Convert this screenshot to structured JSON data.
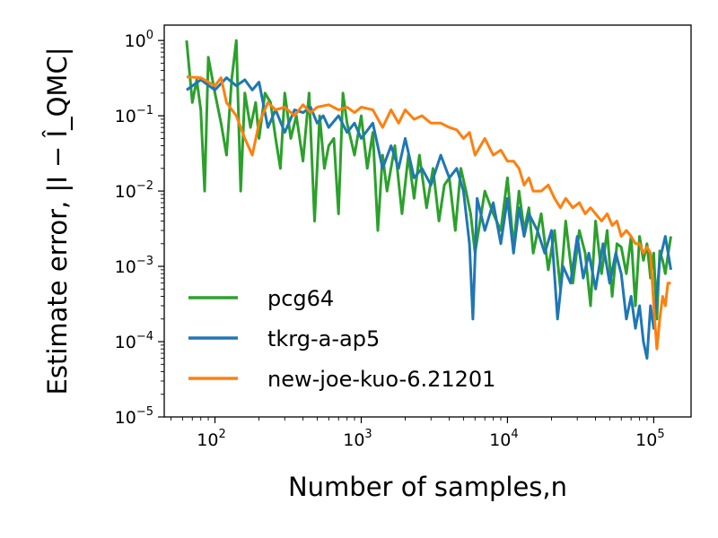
{
  "chart_data": {
    "type": "line",
    "title": "",
    "xlabel": "Number of samples,n",
    "ylabel": "Estimate error, |I − Î_QMC|",
    "xscale": "log",
    "yscale": "log",
    "xlim": [
      45,
      180000
    ],
    "ylim": [
      1e-05,
      1.6
    ],
    "x_ticks": [
      {
        "value": 100,
        "base": "10",
        "exp": "2"
      },
      {
        "value": 1000,
        "base": "10",
        "exp": "3"
      },
      {
        "value": 10000,
        "base": "10",
        "exp": "4"
      },
      {
        "value": 100000,
        "base": "10",
        "exp": "5"
      }
    ],
    "y_ticks": [
      {
        "value": 1,
        "base": "10",
        "exp": "0"
      },
      {
        "value": 0.1,
        "base": "10",
        "exp": "−1"
      },
      {
        "value": 0.01,
        "base": "10",
        "exp": "−2"
      },
      {
        "value": 0.001,
        "base": "10",
        "exp": "−3"
      },
      {
        "value": 0.0001,
        "base": "10",
        "exp": "−4"
      },
      {
        "value": 1e-05,
        "base": "10",
        "exp": "−5"
      }
    ],
    "legend_position": "lower-left",
    "series": [
      {
        "name": "pcg64",
        "color": "#2ca02c",
        "x": [
          64,
          70,
          75,
          80,
          85,
          90,
          100,
          110,
          120,
          130,
          140,
          150,
          160,
          175,
          190,
          200,
          220,
          240,
          260,
          280,
          300,
          330,
          360,
          400,
          440,
          480,
          520,
          560,
          600,
          650,
          700,
          750,
          800,
          900,
          1000,
          1100,
          1200,
          1300,
          1400,
          1500,
          1700,
          1900,
          2100,
          2300,
          2500,
          2800,
          3100,
          3400,
          3700,
          4000,
          4400,
          4800,
          5200,
          5600,
          6000,
          7000,
          8000,
          9000,
          10000,
          11000,
          12000,
          13000,
          14000,
          15000,
          17000,
          19000,
          21000,
          23000,
          25000,
          28000,
          31000,
          34000,
          37000,
          40000,
          44000,
          48000,
          52000,
          56000,
          60000,
          65000,
          70000,
          75000,
          80000,
          85000,
          90000,
          95000,
          100000,
          105000,
          110000,
          115000,
          120000,
          125000,
          131000
        ],
        "y": [
          1.0,
          0.15,
          0.3,
          0.12,
          0.01,
          0.6,
          0.2,
          0.08,
          0.03,
          0.3,
          1.0,
          0.01,
          0.2,
          0.07,
          0.15,
          0.05,
          0.2,
          0.15,
          0.05,
          0.02,
          0.2,
          0.05,
          0.1,
          0.025,
          0.2,
          0.004,
          0.1,
          0.02,
          0.04,
          0.05,
          0.005,
          0.2,
          0.08,
          0.03,
          0.1,
          0.02,
          0.06,
          0.003,
          0.03,
          0.01,
          0.04,
          0.005,
          0.03,
          0.008,
          0.03,
          0.006,
          0.02,
          0.004,
          0.012,
          0.015,
          0.003,
          0.02,
          0.01,
          0.005,
          0.0015,
          0.01,
          0.005,
          0.003,
          0.015,
          0.0018,
          0.01,
          0.003,
          0.006,
          0.0015,
          0.005,
          0.0009,
          0.003,
          0.0005,
          0.004,
          0.0006,
          0.003,
          0.0015,
          0.0003,
          0.004,
          0.0008,
          0.003,
          0.0004,
          0.002,
          0.0018,
          0.0008,
          0.0025,
          0.0003,
          0.0025,
          0.0012,
          0.002,
          0.0007,
          0.0015,
          0.0002,
          0.0016,
          0.0012,
          0.0008,
          0.0014,
          0.0025
        ]
      },
      {
        "name": "tkrg-a-ap5",
        "color": "#1f77b4",
        "x": [
          64,
          80,
          100,
          120,
          140,
          160,
          180,
          200,
          230,
          260,
          300,
          350,
          400,
          450,
          500,
          550,
          600,
          700,
          800,
          900,
          1000,
          1200,
          1400,
          1600,
          1800,
          2000,
          2300,
          2600,
          3000,
          3500,
          4000,
          4500,
          5000,
          5500,
          5800,
          6200,
          7000,
          8000,
          9000,
          10000,
          11000,
          12000,
          13000,
          14000,
          16000,
          18000,
          20000,
          22000,
          24000,
          27000,
          30000,
          33000,
          36000,
          40000,
          45000,
          50000,
          55000,
          60000,
          65000,
          70000,
          75000,
          80000,
          85000,
          90000,
          95000,
          100000,
          110000,
          120000,
          131000
        ],
        "y": [
          0.22,
          0.3,
          0.22,
          0.32,
          0.25,
          0.3,
          0.22,
          0.28,
          0.07,
          0.12,
          0.06,
          0.12,
          0.11,
          0.13,
          0.08,
          0.1,
          0.07,
          0.1,
          0.06,
          0.08,
          0.05,
          0.08,
          0.02,
          0.04,
          0.02,
          0.05,
          0.015,
          0.02,
          0.012,
          0.03,
          0.015,
          0.02,
          0.01,
          0.002,
          0.0002,
          0.008,
          0.003,
          0.007,
          0.002,
          0.008,
          0.0015,
          0.006,
          0.0025,
          0.005,
          0.003,
          0.0015,
          0.003,
          0.0002,
          0.001,
          0.0006,
          0.0025,
          0.0007,
          0.0015,
          0.0005,
          0.002,
          0.0006,
          0.0015,
          0.0008,
          0.0002,
          0.0004,
          0.00015,
          0.0003,
          0.0001,
          6e-05,
          0.0003,
          0.00015,
          0.0012,
          0.0025,
          0.0009
        ]
      },
      {
        "name": "new-joe-kuo-6.21201",
        "color": "#ff7f0e",
        "x": [
          64,
          80,
          100,
          110,
          120,
          140,
          160,
          180,
          200,
          230,
          260,
          300,
          350,
          400,
          450,
          500,
          600,
          700,
          800,
          900,
          1000,
          1200,
          1400,
          1600,
          1800,
          2000,
          2300,
          2600,
          3000,
          3500,
          4000,
          4500,
          5000,
          5500,
          6000,
          7000,
          8000,
          9000,
          10000,
          11000,
          12000,
          13000,
          14000,
          15000,
          17000,
          19000,
          21000,
          23000,
          25000,
          28000,
          31000,
          34000,
          37000,
          40000,
          44000,
          48000,
          52000,
          56000,
          60000,
          65000,
          70000,
          75000,
          80000,
          85000,
          90000,
          95000,
          100000,
          105000,
          110000,
          115000,
          120000,
          125000,
          131000
        ],
        "y": [
          0.33,
          0.32,
          0.25,
          0.32,
          0.15,
          0.1,
          0.05,
          0.03,
          0.08,
          0.15,
          0.12,
          0.13,
          0.1,
          0.14,
          0.11,
          0.13,
          0.14,
          0.12,
          0.13,
          0.11,
          0.13,
          0.12,
          0.07,
          0.12,
          0.08,
          0.12,
          0.09,
          0.1,
          0.08,
          0.08,
          0.07,
          0.065,
          0.05,
          0.06,
          0.03,
          0.05,
          0.03,
          0.035,
          0.025,
          0.025,
          0.02,
          0.012,
          0.015,
          0.01,
          0.01,
          0.012,
          0.008,
          0.006,
          0.008,
          0.006,
          0.007,
          0.005,
          0.006,
          0.005,
          0.004,
          0.005,
          0.0035,
          0.004,
          0.0025,
          0.003,
          0.0025,
          0.002,
          0.002,
          0.0015,
          0.0018,
          0.0015,
          0.0003,
          8e-05,
          0.0002,
          0.0004,
          0.0003,
          0.0006,
          0.0006
        ]
      }
    ]
  }
}
